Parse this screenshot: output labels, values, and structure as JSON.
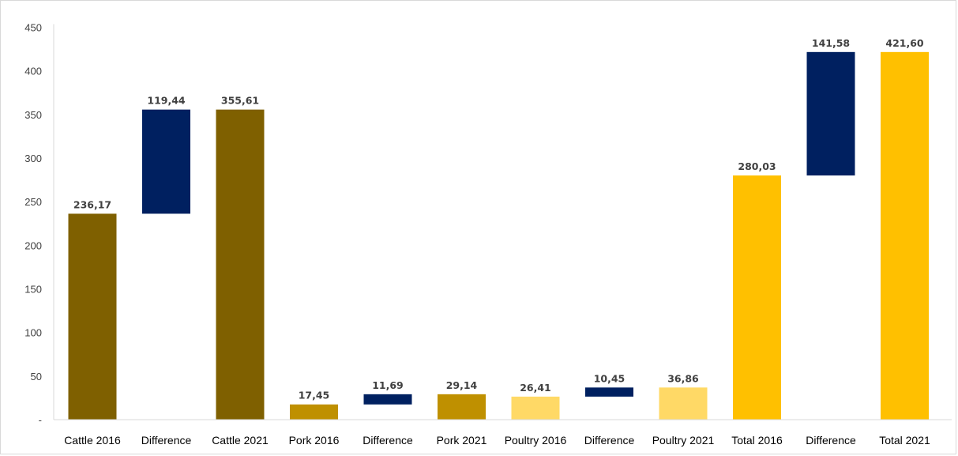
{
  "chart_data": {
    "type": "bar",
    "subtype": "waterfall",
    "categories": [
      "Cattle 2016",
      "Difference",
      "Cattle 2021",
      "Pork 2016",
      "Difference",
      "Pork 2021",
      "Poultry 2016",
      "Difference",
      "Poultry 2021",
      "Total 2016",
      "Difference",
      "Total 2021"
    ],
    "bars": [
      {
        "category": "Cattle 2016",
        "base": 0,
        "value": 236.17,
        "label": "236,17",
        "color": "#7f6000"
      },
      {
        "category": "Difference",
        "base": 236.17,
        "value": 119.44,
        "label": "119,44",
        "color": "#002060"
      },
      {
        "category": "Cattle 2021",
        "base": 0,
        "value": 355.61,
        "label": "355,61",
        "color": "#7f6000"
      },
      {
        "category": "Pork 2016",
        "base": 0,
        "value": 17.45,
        "label": "17,45",
        "color": "#bf9000"
      },
      {
        "category": "Difference",
        "base": 17.45,
        "value": 11.69,
        "label": "11,69",
        "color": "#002060"
      },
      {
        "category": "Pork 2021",
        "base": 0,
        "value": 29.14,
        "label": "29,14",
        "color": "#bf9000"
      },
      {
        "category": "Poultry 2016",
        "base": 0,
        "value": 26.41,
        "label": "26,41",
        "color": "#ffd966"
      },
      {
        "category": "Difference",
        "base": 26.41,
        "value": 10.45,
        "label": "10,45",
        "color": "#002060"
      },
      {
        "category": "Poultry 2021",
        "base": 0,
        "value": 36.86,
        "label": "36,86",
        "color": "#ffd966"
      },
      {
        "category": "Total 2016",
        "base": 0,
        "value": 280.03,
        "label": "280,03",
        "color": "#ffc000"
      },
      {
        "category": "Difference",
        "base": 280.03,
        "value": 141.58,
        "label": "141,58",
        "color": "#002060"
      },
      {
        "category": "Total 2021",
        "base": 0,
        "value": 421.6,
        "label": "421,60",
        "color": "#ffc000"
      }
    ],
    "yticks": [
      "-",
      "50",
      "100",
      "150",
      "200",
      "250",
      "300",
      "350",
      "400",
      "450"
    ],
    "ylim": [
      0,
      450
    ],
    "title": "",
    "xlabel": "",
    "ylabel": "",
    "grid": false,
    "legend": "none"
  }
}
